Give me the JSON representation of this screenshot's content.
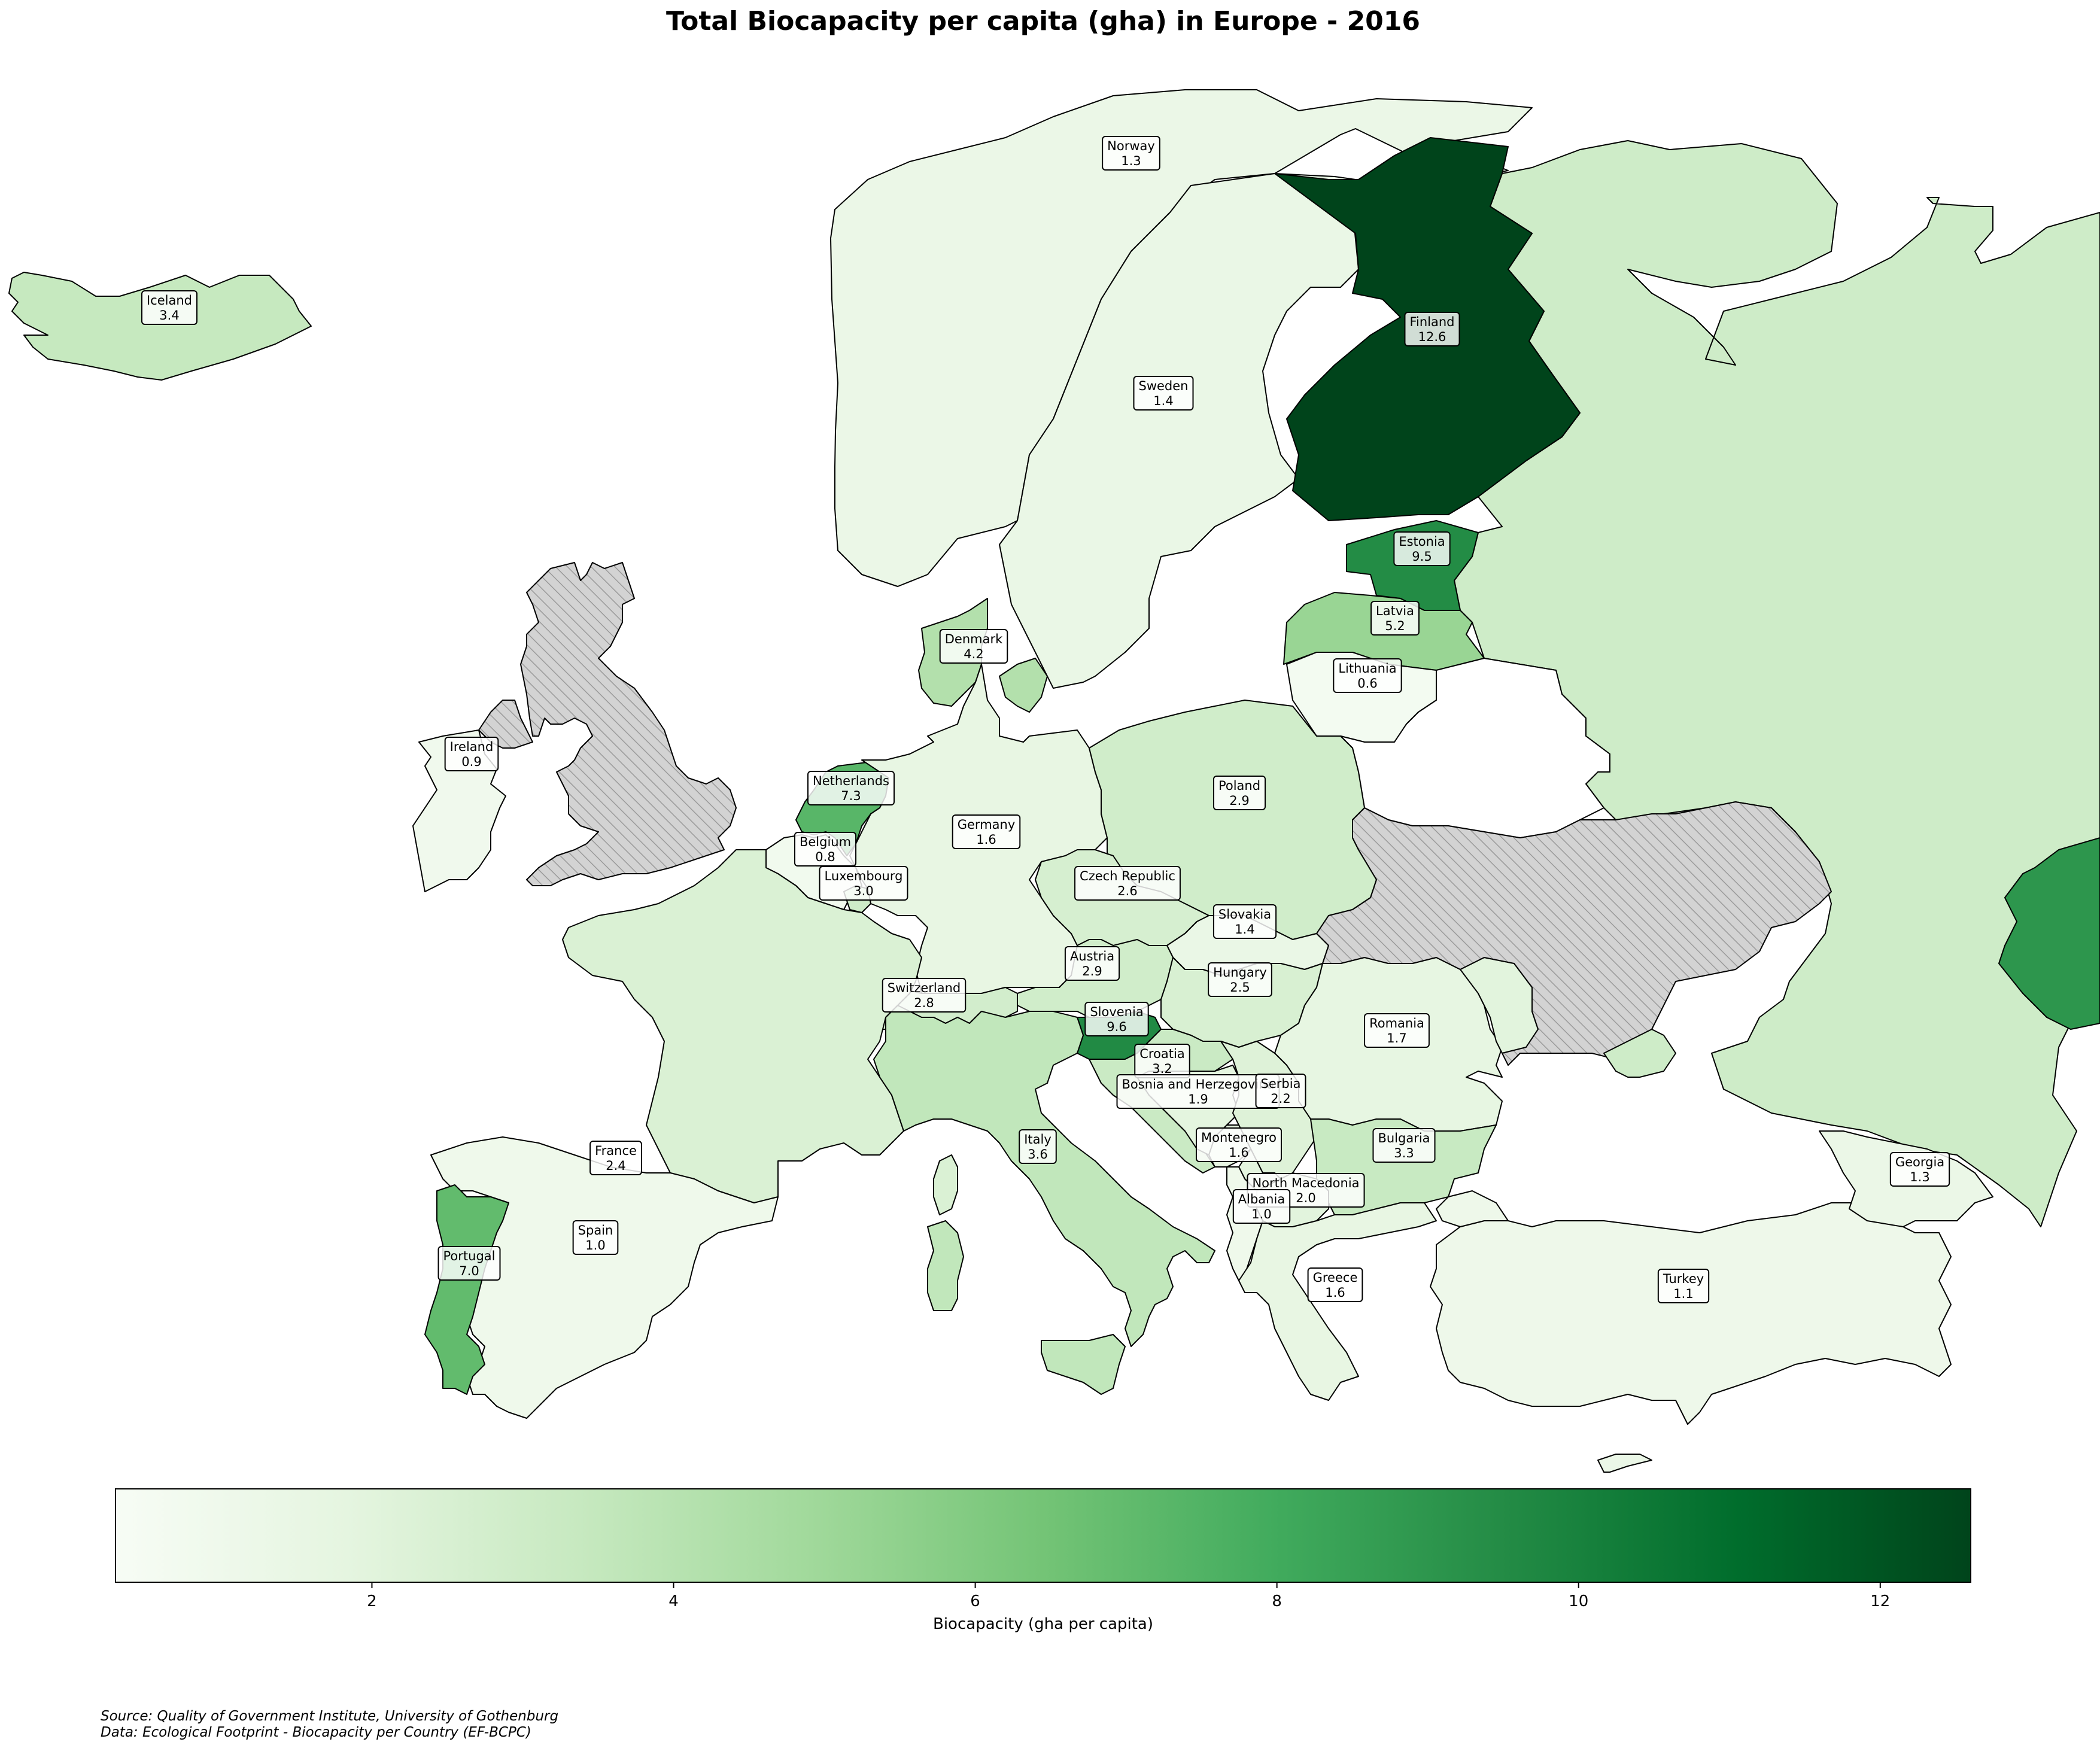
{
  "title": "Total Biocapacity per capita (gha) in Europe - 2016",
  "colorbar": {
    "label": "Biocapacity (gha per capita)",
    "min": 0.3,
    "max": 12.6,
    "ticks": [
      "2",
      "4",
      "6",
      "8",
      "10",
      "12"
    ],
    "tick_values": [
      2,
      4,
      6,
      8,
      10,
      12
    ],
    "colormap": "Greens",
    "colormap_stops": [
      "#f7fcf5",
      "#e5f5e0",
      "#c7e9c0",
      "#a1d99b",
      "#74c476",
      "#41ab5d",
      "#238b45",
      "#006d2c",
      "#00441b"
    ]
  },
  "no_data_style": {
    "fill": "#d3d3d3",
    "hatch": "diagonal"
  },
  "countries": [
    {
      "name": "Norway",
      "value": 1.3,
      "label": "1.3"
    },
    {
      "name": "Iceland",
      "value": 3.4,
      "label": "3.4"
    },
    {
      "name": "Finland",
      "value": 12.6,
      "label": "12.6"
    },
    {
      "name": "Sweden",
      "value": 1.4,
      "label": "1.4"
    },
    {
      "name": "Estonia",
      "value": 9.5,
      "label": "9.5"
    },
    {
      "name": "Latvia",
      "value": 5.2,
      "label": "5.2"
    },
    {
      "name": "Denmark",
      "value": 4.2,
      "label": "4.2"
    },
    {
      "name": "Lithuania",
      "value": 0.6,
      "label": "0.6"
    },
    {
      "name": "Ireland",
      "value": 0.9,
      "label": "0.9"
    },
    {
      "name": "Netherlands",
      "value": 7.3,
      "label": "7.3"
    },
    {
      "name": "Poland",
      "value": 2.9,
      "label": "2.9"
    },
    {
      "name": "Germany",
      "value": 1.6,
      "label": "1.6"
    },
    {
      "name": "Belgium",
      "value": 0.8,
      "label": "0.8"
    },
    {
      "name": "Luxembourg",
      "value": 3.0,
      "label": "3.0"
    },
    {
      "name": "Czech Republic",
      "value": 2.6,
      "label": "2.6"
    },
    {
      "name": "Slovakia",
      "value": 1.4,
      "label": "1.4"
    },
    {
      "name": "Austria",
      "value": 2.9,
      "label": "2.9"
    },
    {
      "name": "Hungary",
      "value": 2.5,
      "label": "2.5"
    },
    {
      "name": "Switzerland",
      "value": 2.8,
      "label": "2.8"
    },
    {
      "name": "Slovenia",
      "value": 9.6,
      "label": "9.6"
    },
    {
      "name": "Romania",
      "value": 1.7,
      "label": "1.7"
    },
    {
      "name": "Croatia",
      "value": 3.2,
      "label": "3.2"
    },
    {
      "name": "Bosnia and Herzegovina",
      "display": "Bosnia and Herzegovina",
      "value": 1.9,
      "label": "1.9"
    },
    {
      "name": "Serbia",
      "value": 2.2,
      "label": "2.2"
    },
    {
      "name": "France",
      "value": 2.4,
      "label": "2.4"
    },
    {
      "name": "Italy",
      "value": 3.6,
      "label": "3.6"
    },
    {
      "name": "Montenegro",
      "value": 1.6,
      "label": "1.6"
    },
    {
      "name": "Bulgaria",
      "value": 3.3,
      "label": "3.3"
    },
    {
      "name": "Georgia",
      "value": 1.3,
      "label": "1.3"
    },
    {
      "name": "North Macedonia",
      "value": 2.0,
      "label": "2.0"
    },
    {
      "name": "Albania",
      "value": 1.0,
      "label": "1.0"
    },
    {
      "name": "Spain",
      "value": 1.0,
      "label": "1.0"
    },
    {
      "name": "Portugal",
      "value": 7.0,
      "label": "7.0"
    },
    {
      "name": "Greece",
      "value": 1.6,
      "label": "1.6"
    },
    {
      "name": "Turkey",
      "value": 1.1,
      "label": "1.1"
    }
  ],
  "unlabeled_regions": [
    {
      "name": "Russia",
      "value": 3.0
    },
    {
      "name": "Kazakhstan",
      "value": 9.0
    },
    {
      "name": "Moldova",
      "value": 2.0
    },
    {
      "name": "Kosovo",
      "value": 1.9
    },
    {
      "name": "Cyprus",
      "value": 1.3
    },
    {
      "name": "United Kingdom",
      "value": null
    },
    {
      "name": "Ukraine",
      "value": null
    }
  ],
  "source_lines": [
    "Source: Quality of Government Institute, University of Gothenburg",
    "Data: Ecological Footprint - Biocapacity per Country (EF-BCPC)"
  ]
}
